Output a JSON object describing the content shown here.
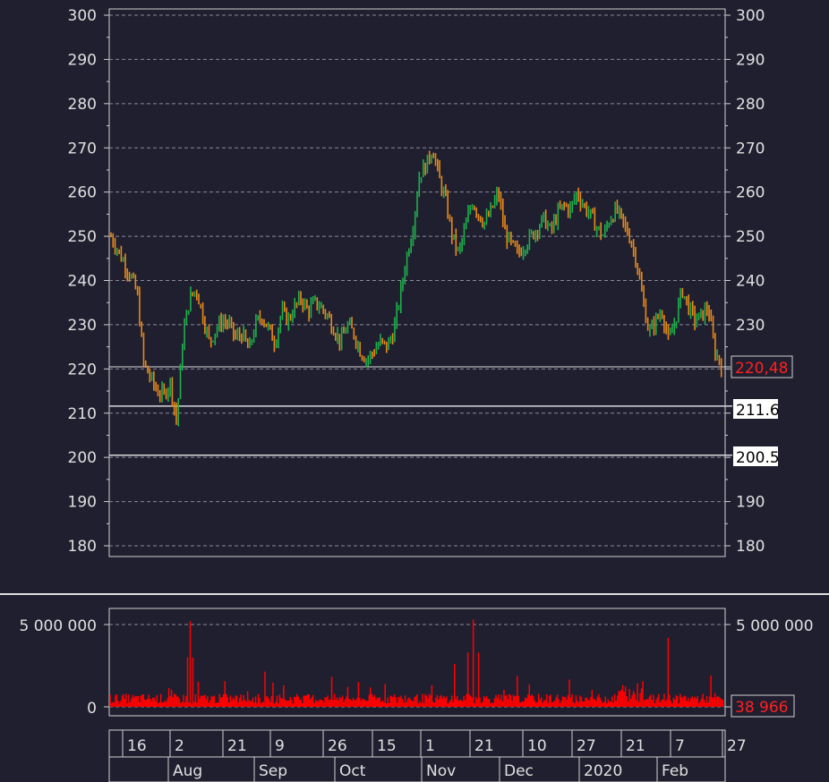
{
  "chart_data": [
    {
      "type": "line",
      "subtype": "candlestick",
      "ylim": [
        180,
        300
      ],
      "yticks": [
        180,
        190,
        200,
        210,
        220,
        230,
        240,
        250,
        260,
        270,
        280,
        290,
        300
      ],
      "grid": "horizontal-dashed",
      "current_price_label": "220,48",
      "level_labels": [
        "211.6",
        "200.5"
      ],
      "levels": [
        211.6,
        200.5
      ],
      "current_price": 220.48,
      "colors": {
        "up": "#1fb04a",
        "down": "#e8891a",
        "price_label": "#ff2020"
      },
      "series": [
        {
          "values": [
            250,
            247,
            244,
            241,
            237,
            221,
            218,
            215,
            214,
            217,
            208,
            228,
            236,
            238,
            232,
            226,
            229,
            231,
            230,
            227,
            228,
            224,
            230,
            232,
            229,
            226,
            233,
            231,
            234,
            236,
            233,
            235,
            234,
            232,
            229,
            226,
            230,
            228,
            224,
            222,
            224,
            226,
            225,
            228,
            236,
            245,
            252,
            264,
            266,
            270,
            263,
            258,
            250,
            246,
            252,
            258,
            255,
            253,
            256,
            260,
            251,
            248,
            246,
            248,
            250,
            252,
            254,
            251,
            255,
            257,
            256,
            260,
            257,
            255,
            252,
            250,
            254,
            256,
            253,
            250,
            245,
            236,
            228,
            231,
            233,
            226,
            231,
            238,
            234,
            231,
            232,
            234,
            224,
            221
          ]
        }
      ]
    },
    {
      "type": "bar",
      "title": "volume",
      "ylim": [
        0,
        5500000
      ],
      "yticks": [
        0,
        5000000
      ],
      "ytick_labels": [
        "0",
        "5 000 000"
      ],
      "current_volume_label": "38 966",
      "color": "#ff0000",
      "spikes": [
        5200000,
        5300000,
        4200000
      ],
      "x_labels_top": [
        "16",
        "2",
        "21",
        "9",
        "26",
        "15",
        "1",
        "21",
        "10",
        "27",
        "21",
        "7",
        "27"
      ],
      "x_labels_bottom": [
        "Aug",
        "Sep",
        "Oct",
        "Nov",
        "Dec",
        "2020",
        "Feb"
      ]
    }
  ]
}
